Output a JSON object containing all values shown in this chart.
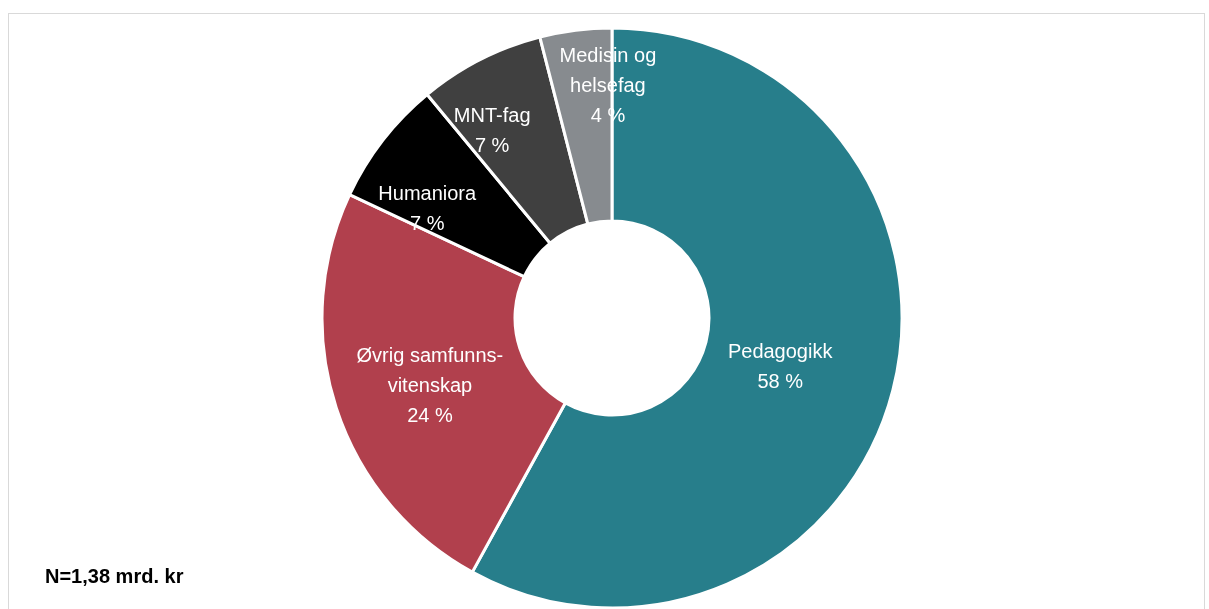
{
  "chart_data": {
    "type": "donut",
    "categories": [
      "Pedagogikk",
      "Øvrig samfunns-\nvitenskap",
      "Humaniora",
      "MNT-fag",
      "Medisin og\nhelsefag"
    ],
    "values": [
      58,
      24,
      7,
      7,
      4
    ],
    "colors": [
      "#277e8b",
      "#b1404d",
      "#000000",
      "#404040",
      "#878b8f"
    ],
    "value_labels": [
      "58 %",
      "24 %",
      "7 %",
      "7 %",
      "4 %"
    ],
    "annotations": [
      "N=1,38 mrd. kr"
    ]
  }
}
